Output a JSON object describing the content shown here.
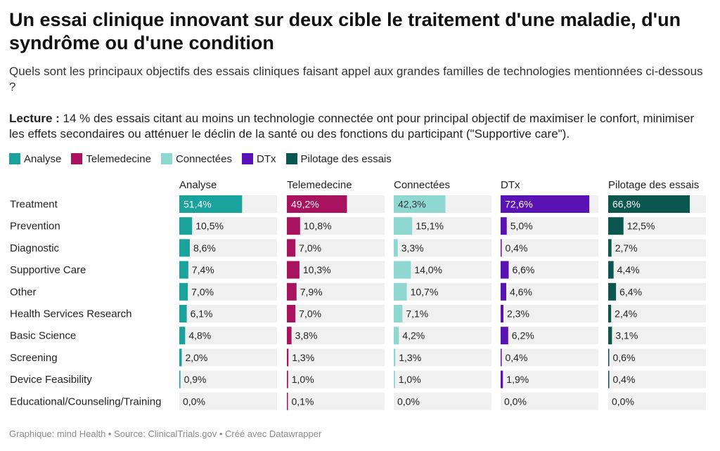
{
  "title": "Un essai clinique innovant sur deux cible le traitement d'une maladie, d'un syndrôme ou d'une condition",
  "subtitle": "Quels sont les principaux objectifs des essais cliniques faisant appel aux grandes familles de technologies mentionnées ci-dessous ?",
  "lecture": {
    "label": "Lecture :",
    "text": " 14 % des essais citant au moins un technologie connectée ont pour principal objectif de maximiser le confort, minimiser les effets secondaires ou atténuer le déclin de la santé ou des fonctions du participant (\"Supportive care\")."
  },
  "footer": "Graphique: mind Health • Source: ClinicalTrials.gov • Créé avec Datawrapper",
  "chart_data": {
    "type": "bar",
    "categories": [
      "Treatment",
      "Prevention",
      "Diagnostic",
      "Supportive Care",
      "Other",
      "Health Services Research",
      "Basic Science",
      "Screening",
      "Device Feasibility",
      "Educational/Counseling/Training"
    ],
    "series": [
      {
        "name": "Analyse",
        "color": "#1aa39c",
        "values": [
          51.4,
          10.5,
          8.6,
          7.4,
          7.0,
          6.1,
          4.8,
          2.0,
          0.9,
          0.0
        ],
        "labels": [
          "51,4%",
          "10,5%",
          "8,6%",
          "7,4%",
          "7,0%",
          "6,1%",
          "4,8%",
          "2,0%",
          "0,9%",
          "0,0%"
        ]
      },
      {
        "name": "Telemedecine",
        "color": "#a8125f",
        "values": [
          49.2,
          10.8,
          7.0,
          10.3,
          7.9,
          7.0,
          3.8,
          1.3,
          1.0,
          0.1
        ],
        "labels": [
          "49,2%",
          "10,8%",
          "7,0%",
          "10,3%",
          "7,9%",
          "7,0%",
          "3,8%",
          "1,3%",
          "1,0%",
          "0,1%"
        ]
      },
      {
        "name": "Connectées",
        "color": "#8fd8d2",
        "values": [
          42.3,
          15.1,
          3.3,
          14.0,
          10.7,
          7.1,
          4.2,
          1.3,
          1.0,
          0.0
        ],
        "labels": [
          "42,3%",
          "15,1%",
          "3,3%",
          "14,0%",
          "10,7%",
          "7,1%",
          "4,2%",
          "1,3%",
          "1,0%",
          "0,0%"
        ]
      },
      {
        "name": "DTx",
        "color": "#5b12b5",
        "values": [
          72.6,
          5.0,
          0.4,
          6.6,
          4.6,
          2.3,
          6.2,
          0.4,
          1.9,
          0.0
        ],
        "labels": [
          "72,6%",
          "5,0%",
          "0,4%",
          "6,6%",
          "4,6%",
          "2,3%",
          "6,2%",
          "0,4%",
          "1,9%",
          "0,0%"
        ]
      },
      {
        "name": "Pilotage des essais",
        "color": "#0b5750",
        "values": [
          66.8,
          12.5,
          2.7,
          4.4,
          6.4,
          2.4,
          3.1,
          0.6,
          0.4,
          0.0
        ],
        "labels": [
          "66,8%",
          "12,5%",
          "2,7%",
          "4,4%",
          "6,4%",
          "2,4%",
          "3,1%",
          "0,6%",
          "0,4%",
          "0,0%"
        ]
      }
    ],
    "xlim": [
      0,
      80
    ],
    "background_track": "#f0f0f0",
    "legend_position": "top-left"
  }
}
